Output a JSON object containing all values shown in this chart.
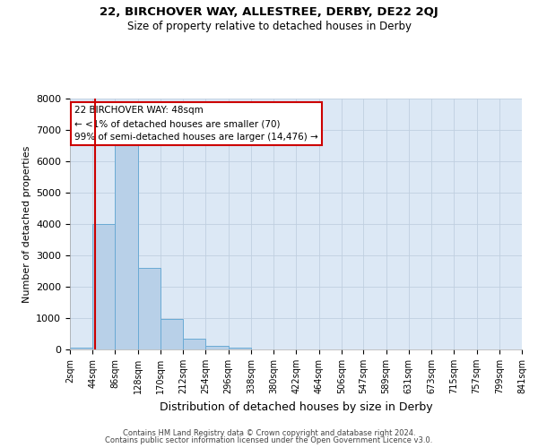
{
  "title": "22, BIRCHOVER WAY, ALLESTREE, DERBY, DE22 2QJ",
  "subtitle": "Size of property relative to detached houses in Derby",
  "xlabel": "Distribution of detached houses by size in Derby",
  "ylabel": "Number of detached properties",
  "bin_labels": [
    "2sqm",
    "44sqm",
    "86sqm",
    "128sqm",
    "170sqm",
    "212sqm",
    "254sqm",
    "296sqm",
    "338sqm",
    "380sqm",
    "422sqm",
    "464sqm",
    "506sqm",
    "547sqm",
    "589sqm",
    "631sqm",
    "673sqm",
    "715sqm",
    "757sqm",
    "799sqm",
    "841sqm"
  ],
  "bar_values": [
    70,
    4000,
    6550,
    2600,
    960,
    330,
    120,
    50,
    0,
    0,
    0,
    0,
    0,
    0,
    0,
    0,
    0,
    0,
    0,
    0
  ],
  "bin_edges": [
    2,
    44,
    86,
    128,
    170,
    212,
    254,
    296,
    338,
    380,
    422,
    464,
    506,
    547,
    589,
    631,
    673,
    715,
    757,
    799,
    841
  ],
  "bar_color": "#b8d0e8",
  "bar_edgecolor": "#6aaad4",
  "property_size": 48,
  "vline_color": "#cc0000",
  "annotation_line1": "22 BIRCHOVER WAY: 48sqm",
  "annotation_line2": "← <1% of detached houses are smaller (70)",
  "annotation_line3": "99% of semi-detached houses are larger (14,476) →",
  "annotation_box_edgecolor": "#cc0000",
  "annotation_box_facecolor": "#ffffff",
  "ylim": [
    0,
    8000
  ],
  "yticks": [
    0,
    1000,
    2000,
    3000,
    4000,
    5000,
    6000,
    7000,
    8000
  ],
  "ax_facecolor": "#dce8f5",
  "background_color": "#ffffff",
  "grid_color": "#c0cfe0",
  "footer_line1": "Contains HM Land Registry data © Crown copyright and database right 2024.",
  "footer_line2": "Contains public sector information licensed under the Open Government Licence v3.0."
}
